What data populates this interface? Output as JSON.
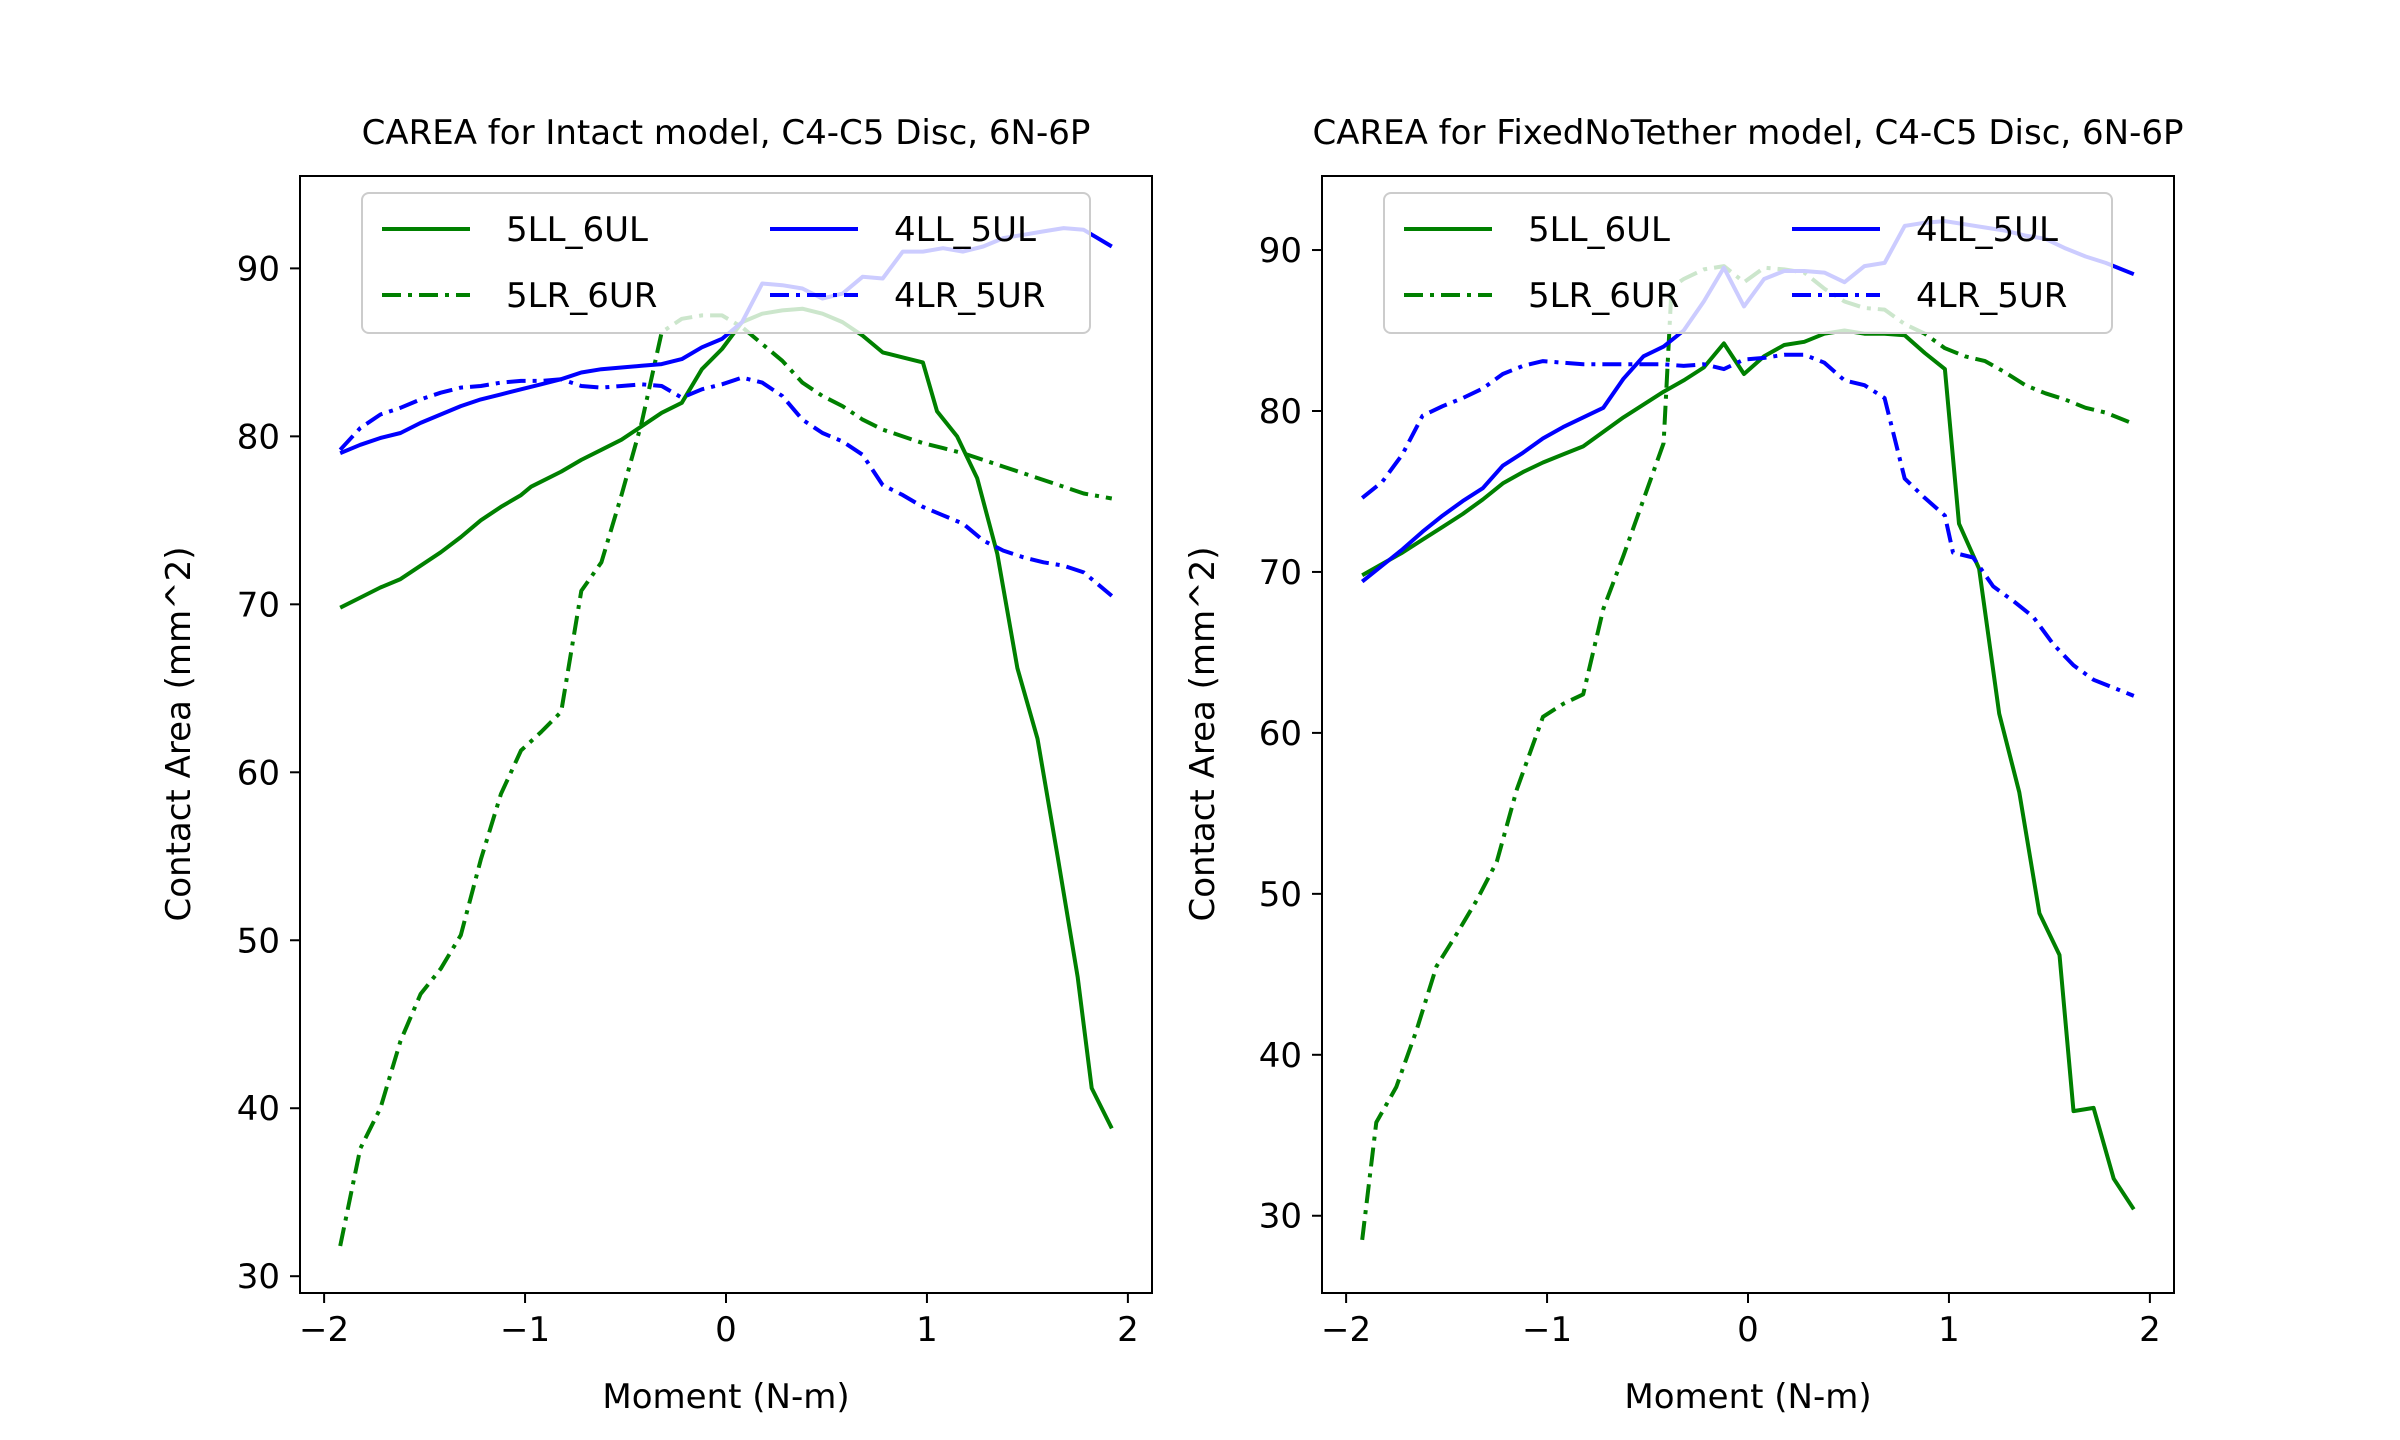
{
  "chart_data": [
    {
      "type": "line",
      "title": "CAREA for Intact model, C4-C5 Disc, 6N-6P",
      "xlabel": "Moment (N-m)",
      "ylabel": "Contact Area (mm^2)",
      "xlim": [
        -2.12,
        2.12
      ],
      "ylim": [
        29.0,
        95.5
      ],
      "xticks": [
        -2,
        -1,
        0,
        1,
        2
      ],
      "xtick_labels": [
        "−2",
        "−1",
        "0",
        "1",
        "2"
      ],
      "yticks": [
        30,
        40,
        50,
        60,
        70,
        80,
        90
      ],
      "ytick_labels": [
        "30",
        "40",
        "50",
        "60",
        "70",
        "80",
        "90"
      ],
      "grid": false,
      "legend": {
        "placement": "upper center",
        "columns": 2
      },
      "series": [
        {
          "name": "5LL_6UL",
          "color": "#008000",
          "dash": "solid",
          "x": [
            -1.92,
            -1.82,
            -1.72,
            -1.62,
            -1.52,
            -1.42,
            -1.32,
            -1.22,
            -1.12,
            -1.02,
            -0.97,
            -0.92,
            -0.82,
            -0.72,
            -0.62,
            -0.52,
            -0.42,
            -0.32,
            -0.22,
            -0.12,
            -0.02,
            0.08,
            0.18,
            0.28,
            0.38,
            0.48,
            0.58,
            0.68,
            0.78,
            0.88,
            0.98,
            1.05,
            1.15,
            1.25,
            1.35,
            1.45,
            1.55,
            1.65,
            1.75,
            1.82,
            1.92
          ],
          "y": [
            69.8,
            70.4,
            71.0,
            71.5,
            72.3,
            73.1,
            74.0,
            75.0,
            75.8,
            76.5,
            77.0,
            77.3,
            77.9,
            78.6,
            79.2,
            79.8,
            80.6,
            81.4,
            82.0,
            84.0,
            85.2,
            86.8,
            87.3,
            87.5,
            87.6,
            87.3,
            86.8,
            86.0,
            85.0,
            84.7,
            84.4,
            81.5,
            80.0,
            77.5,
            73.0,
            66.2,
            62.0,
            55.0,
            47.8,
            41.2,
            38.8
          ]
        },
        {
          "name": "5LR_6UR",
          "color": "#008000",
          "dash": "dashdot",
          "x": [
            -1.92,
            -1.82,
            -1.72,
            -1.62,
            -1.52,
            -1.42,
            -1.32,
            -1.22,
            -1.12,
            -1.02,
            -0.92,
            -0.82,
            -0.72,
            -0.62,
            -0.52,
            -0.42,
            -0.32,
            -0.22,
            -0.12,
            -0.02,
            0.08,
            0.18,
            0.28,
            0.38,
            0.48,
            0.58,
            0.68,
            0.78,
            0.88,
            0.98,
            1.08,
            1.18,
            1.28,
            1.38,
            1.48,
            1.58,
            1.68,
            1.78,
            1.92
          ],
          "y": [
            31.8,
            37.6,
            40.0,
            44.0,
            46.8,
            48.3,
            50.3,
            54.8,
            58.7,
            61.3,
            62.4,
            63.6,
            70.8,
            72.5,
            76.5,
            80.8,
            86.2,
            87.0,
            87.2,
            87.2,
            86.5,
            85.5,
            84.5,
            83.2,
            82.4,
            81.8,
            81.0,
            80.4,
            80.0,
            79.6,
            79.3,
            79.0,
            78.6,
            78.2,
            77.8,
            77.4,
            77.0,
            76.6,
            76.3
          ]
        },
        {
          "name": "4LL_5UL",
          "color": "#0000ff",
          "dash": "solid",
          "x": [
            -1.92,
            -1.82,
            -1.72,
            -1.62,
            -1.52,
            -1.42,
            -1.32,
            -1.22,
            -1.12,
            -1.02,
            -0.92,
            -0.82,
            -0.72,
            -0.62,
            -0.52,
            -0.42,
            -0.32,
            -0.22,
            -0.12,
            -0.02,
            0.08,
            0.18,
            0.28,
            0.38,
            0.48,
            0.58,
            0.68,
            0.78,
            0.88,
            0.98,
            1.08,
            1.18,
            1.28,
            1.38,
            1.48,
            1.58,
            1.68,
            1.78,
            1.92
          ],
          "y": [
            79.0,
            79.5,
            79.9,
            80.2,
            80.8,
            81.3,
            81.8,
            82.2,
            82.5,
            82.8,
            83.1,
            83.4,
            83.8,
            84.0,
            84.1,
            84.2,
            84.3,
            84.6,
            85.3,
            85.8,
            86.8,
            89.1,
            89.0,
            88.8,
            88.2,
            88.5,
            89.5,
            89.4,
            91.0,
            91.0,
            91.2,
            91.0,
            91.3,
            91.8,
            92.0,
            92.2,
            92.4,
            92.3,
            91.3
          ]
        },
        {
          "name": "4LR_5UR",
          "color": "#0000ff",
          "dash": "dashdot",
          "x": [
            -1.92,
            -1.82,
            -1.72,
            -1.62,
            -1.52,
            -1.42,
            -1.32,
            -1.22,
            -1.12,
            -1.02,
            -0.92,
            -0.82,
            -0.72,
            -0.62,
            -0.52,
            -0.42,
            -0.32,
            -0.22,
            -0.12,
            -0.02,
            0.08,
            0.18,
            0.28,
            0.38,
            0.48,
            0.58,
            0.68,
            0.78,
            0.88,
            0.98,
            1.08,
            1.18,
            1.28,
            1.38,
            1.48,
            1.58,
            1.68,
            1.78,
            1.92
          ],
          "y": [
            79.2,
            80.5,
            81.3,
            81.7,
            82.2,
            82.6,
            82.9,
            83.0,
            83.2,
            83.3,
            83.3,
            83.4,
            83.0,
            82.9,
            83.0,
            83.1,
            83.0,
            82.3,
            82.8,
            83.1,
            83.5,
            83.2,
            82.4,
            81.0,
            80.2,
            79.7,
            78.9,
            77.1,
            76.5,
            75.8,
            75.3,
            74.8,
            73.8,
            73.2,
            72.8,
            72.5,
            72.3,
            71.9,
            70.5
          ]
        }
      ]
    },
    {
      "type": "line",
      "title": "CAREA for FixedNoTether model, C4-C5 Disc, 6N-6P",
      "xlabel": "Moment (N-m)",
      "ylabel": "Contact Area (mm^2)",
      "xlim": [
        -2.12,
        2.12
      ],
      "ylim": [
        25.2,
        94.6
      ],
      "xticks": [
        -2,
        -1,
        0,
        1,
        2
      ],
      "xtick_labels": [
        "−2",
        "−1",
        "0",
        "1",
        "2"
      ],
      "yticks": [
        30,
        40,
        50,
        60,
        70,
        80,
        90
      ],
      "ytick_labels": [
        "30",
        "40",
        "50",
        "60",
        "70",
        "80",
        "90"
      ],
      "grid": false,
      "legend": {
        "placement": "upper center",
        "columns": 2
      },
      "series": [
        {
          "name": "5LL_6UL",
          "color": "#008000",
          "dash": "solid",
          "x": [
            -1.92,
            -1.82,
            -1.72,
            -1.62,
            -1.52,
            -1.42,
            -1.32,
            -1.22,
            -1.12,
            -1.02,
            -0.92,
            -0.82,
            -0.72,
            -0.62,
            -0.52,
            -0.42,
            -0.32,
            -0.22,
            -0.12,
            -0.02,
            0.08,
            0.18,
            0.28,
            0.38,
            0.48,
            0.58,
            0.68,
            0.78,
            0.88,
            0.98,
            1.05,
            1.15,
            1.25,
            1.35,
            1.45,
            1.55,
            1.62,
            1.72,
            1.82,
            1.92
          ],
          "y": [
            69.8,
            70.5,
            71.2,
            72.0,
            72.8,
            73.6,
            74.5,
            75.5,
            76.2,
            76.8,
            77.3,
            77.8,
            78.7,
            79.6,
            80.4,
            81.2,
            81.9,
            82.7,
            84.2,
            82.3,
            83.4,
            84.1,
            84.3,
            84.8,
            85.0,
            84.8,
            84.8,
            84.7,
            83.6,
            82.6,
            73.0,
            70.2,
            61.2,
            56.3,
            48.8,
            46.2,
            36.5,
            36.7,
            32.3,
            30.4
          ]
        },
        {
          "name": "5LR_6UR",
          "color": "#008000",
          "dash": "dashdot",
          "x": [
            -1.92,
            -1.85,
            -1.75,
            -1.65,
            -1.55,
            -1.45,
            -1.35,
            -1.25,
            -1.15,
            -1.02,
            -0.92,
            -0.82,
            -0.72,
            -0.62,
            -0.52,
            -0.42,
            -0.38,
            -0.32,
            -0.22,
            -0.12,
            -0.02,
            0.08,
            0.18,
            0.28,
            0.38,
            0.48,
            0.58,
            0.68,
            0.78,
            0.88,
            0.98,
            1.08,
            1.18,
            1.28,
            1.38,
            1.48,
            1.58,
            1.68,
            1.78,
            1.92
          ],
          "y": [
            28.5,
            35.8,
            38.0,
            41.5,
            45.5,
            47.5,
            49.6,
            52.0,
            56.5,
            61.0,
            61.8,
            62.4,
            67.7,
            71.0,
            74.5,
            78.0,
            87.7,
            88.2,
            88.8,
            89.0,
            88.0,
            88.9,
            88.8,
            88.6,
            87.6,
            86.8,
            86.4,
            86.3,
            85.4,
            84.8,
            83.9,
            83.4,
            83.1,
            82.4,
            81.6,
            81.1,
            80.7,
            80.2,
            79.9,
            79.2
          ]
        },
        {
          "name": "4LL_5UL",
          "color": "#0000ff",
          "dash": "solid",
          "x": [
            -1.92,
            -1.82,
            -1.72,
            -1.62,
            -1.52,
            -1.42,
            -1.32,
            -1.22,
            -1.12,
            -1.02,
            -0.92,
            -0.82,
            -0.72,
            -0.62,
            -0.52,
            -0.42,
            -0.32,
            -0.22,
            -0.12,
            -0.02,
            0.08,
            0.18,
            0.28,
            0.38,
            0.48,
            0.58,
            0.68,
            0.78,
            0.88,
            0.98,
            1.08,
            1.18,
            1.28,
            1.38,
            1.48,
            1.58,
            1.68,
            1.78,
            1.92
          ],
          "y": [
            69.4,
            70.4,
            71.4,
            72.5,
            73.5,
            74.4,
            75.2,
            76.6,
            77.4,
            78.3,
            79.0,
            79.6,
            80.2,
            82.0,
            83.4,
            84.0,
            85.0,
            86.8,
            88.9,
            86.5,
            88.2,
            88.7,
            88.7,
            88.6,
            88.0,
            89.0,
            89.2,
            91.5,
            91.7,
            91.8,
            91.6,
            91.4,
            91.2,
            90.9,
            90.7,
            90.1,
            89.6,
            89.2,
            88.5
          ]
        },
        {
          "name": "4LR_5UR",
          "color": "#0000ff",
          "dash": "dashdot",
          "x": [
            -1.92,
            -1.82,
            -1.72,
            -1.62,
            -1.52,
            -1.42,
            -1.32,
            -1.22,
            -1.12,
            -1.02,
            -0.92,
            -0.82,
            -0.72,
            -0.62,
            -0.52,
            -0.42,
            -0.32,
            -0.22,
            -0.12,
            -0.02,
            0.08,
            0.18,
            0.28,
            0.38,
            0.48,
            0.58,
            0.68,
            0.78,
            0.88,
            0.98,
            1.02,
            1.12,
            1.22,
            1.32,
            1.42,
            1.52,
            1.62,
            1.72,
            1.82,
            1.92
          ],
          "y": [
            74.6,
            75.6,
            77.3,
            79.7,
            80.3,
            80.8,
            81.4,
            82.3,
            82.8,
            83.1,
            83.0,
            82.9,
            82.9,
            82.9,
            82.9,
            82.9,
            82.8,
            82.9,
            82.6,
            83.2,
            83.3,
            83.5,
            83.5,
            83.0,
            81.9,
            81.6,
            80.8,
            75.8,
            74.6,
            73.5,
            71.2,
            70.9,
            69.1,
            68.2,
            67.2,
            65.5,
            64.2,
            63.3,
            62.8,
            62.3
          ]
        }
      ]
    }
  ]
}
